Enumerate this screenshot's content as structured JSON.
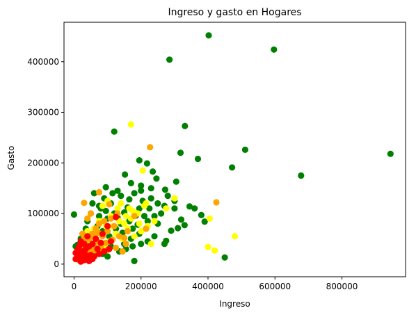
{
  "chart_data": {
    "type": "scatter",
    "title": "Ingreso y gasto en Hogares",
    "xlabel": "Ingreso",
    "ylabel": "Gasto",
    "xlim": [
      -30000,
      990000
    ],
    "ylim": [
      -25000,
      478000
    ],
    "xticks": [
      0,
      200000,
      400000,
      600000,
      800000
    ],
    "yticks": [
      0,
      100000,
      200000,
      300000,
      400000
    ],
    "xtick_labels": [
      "0",
      "200000",
      "400000",
      "600000",
      "800000"
    ],
    "ytick_labels": [
      "0",
      "100000",
      "200000",
      "300000",
      "400000"
    ],
    "grid": false,
    "legend": "none",
    "series": [
      {
        "color": "#008000",
        "points": [
          [
            402000,
            452000
          ],
          [
            597000,
            424000
          ],
          [
            285000,
            404000
          ],
          [
            945000,
            218000
          ],
          [
            331000,
            273000
          ],
          [
            120000,
            262000
          ],
          [
            511000,
            226000
          ],
          [
            318000,
            220000
          ],
          [
            370000,
            208000
          ],
          [
            472000,
            191000
          ],
          [
            678000,
            175000
          ],
          [
            195000,
            205000
          ],
          [
            218000,
            199000
          ],
          [
            246000,
            169000
          ],
          [
            235000,
            183000
          ],
          [
            152000,
            177000
          ],
          [
            95000,
            152000
          ],
          [
            170000,
            160000
          ],
          [
            200000,
            155000
          ],
          [
            230000,
            150000
          ],
          [
            272000,
            147000
          ],
          [
            305000,
            163000
          ],
          [
            360000,
            110000
          ],
          [
            345000,
            114000
          ],
          [
            380000,
            97000
          ],
          [
            390000,
            84000
          ],
          [
            330000,
            77000
          ],
          [
            310000,
            71000
          ],
          [
            290000,
            66000
          ],
          [
            275000,
            46000
          ],
          [
            270000,
            40000
          ],
          [
            450000,
            13000
          ],
          [
            180000,
            6000
          ],
          [
            0,
            98000
          ],
          [
            60000,
            140000
          ],
          [
            130000,
            145000
          ],
          [
            160000,
            112000
          ],
          [
            185000,
            96000
          ],
          [
            205000,
            125000
          ],
          [
            225000,
            110000
          ],
          [
            240000,
            95000
          ],
          [
            250000,
            80000
          ],
          [
            215000,
            70000
          ],
          [
            195000,
            60000
          ],
          [
            170000,
            50000
          ],
          [
            150000,
            40000
          ],
          [
            140000,
            80000
          ],
          [
            120000,
            100000
          ],
          [
            100000,
            90000
          ],
          [
            80000,
            110000
          ],
          [
            70000,
            75000
          ],
          [
            55000,
            60000
          ],
          [
            40000,
            85000
          ],
          [
            30000,
            55000
          ],
          [
            25000,
            40000
          ],
          [
            45000,
            30000
          ],
          [
            65000,
            45000
          ],
          [
            85000,
            65000
          ],
          [
            105000,
            55000
          ],
          [
            125000,
            70000
          ],
          [
            145000,
            62000
          ],
          [
            165000,
            85000
          ],
          [
            190000,
            78000
          ],
          [
            210000,
            95000
          ],
          [
            230000,
            130000
          ],
          [
            260000,
            100000
          ],
          [
            280000,
            135000
          ],
          [
            300000,
            110000
          ],
          [
            320000,
            88000
          ],
          [
            110000,
            120000
          ],
          [
            90000,
            130000
          ],
          [
            75000,
            95000
          ],
          [
            50000,
            100000
          ],
          [
            35000,
            70000
          ],
          [
            20000,
            50000
          ],
          [
            10000,
            38000
          ],
          [
            60000,
            25000
          ],
          [
            110000,
            35000
          ],
          [
            135000,
            25000
          ],
          [
            155000,
            30000
          ],
          [
            175000,
            35000
          ],
          [
            200000,
            40000
          ],
          [
            220000,
            45000
          ],
          [
            240000,
            55000
          ],
          [
            115000,
            140000
          ],
          [
            140000,
            135000
          ],
          [
            165000,
            128000
          ],
          [
            180000,
            140000
          ],
          [
            200000,
            145000
          ],
          [
            250000,
            120000
          ],
          [
            270000,
            115000
          ],
          [
            300000,
            125000
          ],
          [
            55000,
            120000
          ],
          [
            75000,
            115000
          ],
          [
            95000,
            105000
          ],
          [
            130000,
            92000
          ],
          [
            150000,
            102000
          ],
          [
            175000,
            70000
          ],
          [
            195000,
            110000
          ],
          [
            220000,
            85000
          ],
          [
            5000,
            35000
          ],
          [
            15000,
            20000
          ],
          [
            85000,
            20000
          ],
          [
            100000,
            15000
          ]
        ]
      },
      {
        "color": "#ffff00",
        "points": [
          [
            170000,
            276000
          ],
          [
            205000,
            185000
          ],
          [
            300000,
            130000
          ],
          [
            405000,
            90000
          ],
          [
            480000,
            55000
          ],
          [
            400000,
            34000
          ],
          [
            420000,
            27000
          ],
          [
            275000,
            110000
          ],
          [
            230000,
            40000
          ],
          [
            210000,
            115000
          ],
          [
            190000,
            100000
          ],
          [
            170000,
            90000
          ],
          [
            150000,
            80000
          ],
          [
            130000,
            110000
          ],
          [
            110000,
            95000
          ],
          [
            95000,
            75000
          ],
          [
            80000,
            60000
          ],
          [
            65000,
            50000
          ],
          [
            50000,
            40000
          ],
          [
            35000,
            30000
          ],
          [
            125000,
            60000
          ],
          [
            145000,
            50000
          ],
          [
            160000,
            70000
          ],
          [
            180000,
            55000
          ],
          [
            200000,
            65000
          ],
          [
            220000,
            75000
          ],
          [
            240000,
            85000
          ],
          [
            105000,
            45000
          ],
          [
            90000,
            35000
          ],
          [
            70000,
            28000
          ],
          [
            115000,
            75000
          ],
          [
            135000,
            85000
          ],
          [
            155000,
            95000
          ],
          [
            175000,
            105000
          ],
          [
            195000,
            80000
          ],
          [
            215000,
            120000
          ],
          [
            60000,
            70000
          ],
          [
            75000,
            85000
          ],
          [
            40000,
            65000
          ],
          [
            30000,
            45000
          ],
          [
            100000,
            125000
          ],
          [
            85000,
            115000
          ],
          [
            140000,
            120000
          ],
          [
            165000,
            110000
          ]
        ]
      },
      {
        "color": "#ffa500",
        "points": [
          [
            227000,
            231000
          ],
          [
            425000,
            122000
          ],
          [
            75000,
            142000
          ],
          [
            30000,
            121000
          ],
          [
            105000,
            118000
          ],
          [
            215000,
            70000
          ],
          [
            180000,
            95000
          ],
          [
            150000,
            52000
          ],
          [
            120000,
            75000
          ],
          [
            100000,
            65000
          ],
          [
            85000,
            55000
          ],
          [
            70000,
            45000
          ],
          [
            60000,
            35000
          ],
          [
            50000,
            30000
          ],
          [
            40000,
            25000
          ],
          [
            30000,
            20000
          ],
          [
            25000,
            15000
          ],
          [
            20000,
            10000
          ],
          [
            15000,
            8000
          ],
          [
            35000,
            40000
          ],
          [
            45000,
            50000
          ],
          [
            55000,
            60000
          ],
          [
            65000,
            70000
          ],
          [
            75000,
            80000
          ],
          [
            90000,
            85000
          ],
          [
            110000,
            90000
          ],
          [
            130000,
            100000
          ],
          [
            155000,
            40000
          ],
          [
            45000,
            15000
          ],
          [
            55000,
            22000
          ],
          [
            65000,
            30000
          ],
          [
            80000,
            38000
          ],
          [
            95000,
            42000
          ],
          [
            115000,
            48000
          ],
          [
            135000,
            55000
          ],
          [
            160000,
            65000
          ],
          [
            40000,
            90000
          ],
          [
            50000,
            100000
          ],
          [
            20000,
            30000
          ],
          [
            10000,
            15000
          ],
          [
            30000,
            50000
          ],
          [
            25000,
            60000
          ],
          [
            145000,
            25000
          ],
          [
            125000,
            32000
          ],
          [
            60000,
            55000
          ],
          [
            70000,
            62000
          ],
          [
            80000,
            30000
          ],
          [
            100000,
            28000
          ]
        ]
      },
      {
        "color": "#ff0000",
        "points": [
          [
            125000,
            93000
          ],
          [
            100000,
            75000
          ],
          [
            85000,
            60000
          ],
          [
            65000,
            50000
          ],
          [
            55000,
            40000
          ],
          [
            45000,
            35000
          ],
          [
            35000,
            30000
          ],
          [
            25000,
            25000
          ],
          [
            15000,
            20000
          ],
          [
            10000,
            15000
          ],
          [
            5000,
            10000
          ],
          [
            20000,
            5000
          ],
          [
            30000,
            8000
          ],
          [
            40000,
            12000
          ],
          [
            50000,
            18000
          ],
          [
            60000,
            15000
          ],
          [
            75000,
            20000
          ],
          [
            90000,
            25000
          ],
          [
            105000,
            30000
          ],
          [
            110000,
            45000
          ],
          [
            80000,
            42000
          ],
          [
            70000,
            30000
          ],
          [
            20000,
            45000
          ],
          [
            30000,
            40000
          ],
          [
            40000,
            55000
          ],
          [
            15000,
            35000
          ],
          [
            10000,
            28000
          ],
          [
            5000,
            22000
          ],
          [
            25000,
            12000
          ],
          [
            35000,
            18000
          ],
          [
            45000,
            6000
          ],
          [
            55000,
            10000
          ]
        ]
      }
    ]
  }
}
